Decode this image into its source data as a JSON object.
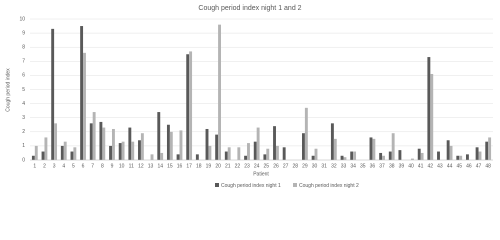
{
  "chart_data": {
    "type": "bar",
    "title": "Cough period index night 1 and 2",
    "y_label": "Cough period index",
    "x_label": "Patient",
    "categories": [
      "1",
      "2",
      "3",
      "4",
      "5",
      "6",
      "7",
      "8",
      "9",
      "10",
      "11",
      "12",
      "13",
      "14",
      "15",
      "16",
      "17",
      "18",
      "19",
      "20",
      "21",
      "22",
      "23",
      "24",
      "25",
      "26",
      "27",
      "28",
      "29",
      "30",
      "31",
      "32",
      "33",
      "34",
      "35",
      "36",
      "37",
      "38",
      "39",
      "40",
      "41",
      "42",
      "43",
      "44",
      "45",
      "46",
      "47",
      "48"
    ],
    "series": [
      {
        "name": "Cough period index night 1",
        "color": "#595959",
        "values": [
          0.3,
          0.6,
          9.3,
          1.0,
          0.6,
          9.5,
          2.6,
          2.7,
          1.0,
          1.2,
          2.3,
          1.4,
          0,
          3.4,
          2.5,
          0.4,
          7.5,
          0.4,
          2.2,
          1.8,
          0.6,
          0,
          0.3,
          1.3,
          0.4,
          2.4,
          0.9,
          0,
          1.9,
          0.3,
          0,
          2.6,
          0.3,
          0.6,
          0,
          1.6,
          0.5,
          0.6,
          0.7,
          0,
          0.8,
          7.3,
          0.6,
          1.4,
          0.3,
          0.4,
          0.9,
          1.3
        ]
      },
      {
        "name": "Cough period index night 2",
        "color": "#b4b4b4",
        "values": [
          1.0,
          1.6,
          2.6,
          1.3,
          0.9,
          7.6,
          3.4,
          2.3,
          2.2,
          1.3,
          1.3,
          1.9,
          0.4,
          0.5,
          2.0,
          2.1,
          7.7,
          0,
          1.0,
          9.6,
          0.9,
          0.9,
          1.2,
          2.3,
          0.8,
          1.0,
          0,
          0,
          3.7,
          0.8,
          0,
          1.5,
          0.2,
          0.6,
          0,
          1.5,
          0.3,
          1.9,
          0,
          0.1,
          0.5,
          6.1,
          0,
          1.0,
          0.3,
          0,
          0.6,
          1.6
        ]
      }
    ],
    "ylim": [
      0,
      10
    ],
    "yticks": [
      0,
      1,
      2,
      3,
      4,
      5,
      6,
      7,
      8,
      9,
      10
    ],
    "grid": true,
    "legend": "bottom"
  }
}
